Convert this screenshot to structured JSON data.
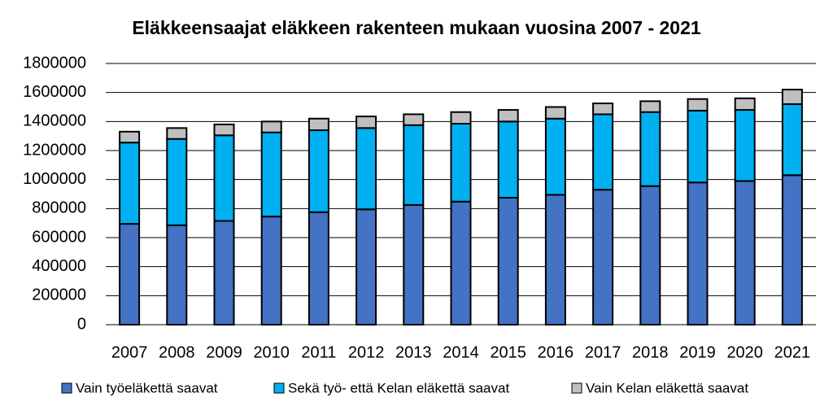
{
  "chart_data": {
    "type": "stacked-bar",
    "title": "Eläkkeensaajat eläkkeen rakenteen mukaan vuosina 2007 - 2021",
    "categories": [
      "2007",
      "2008",
      "2009",
      "2010",
      "2011",
      "2012",
      "2013",
      "2014",
      "2015",
      "2016",
      "2017",
      "2018",
      "2019",
      "2020",
      "2021"
    ],
    "series": [
      {
        "name": "Vain työeläkettä saavat",
        "color": "#4472c4",
        "values": [
          695000,
          685000,
          715000,
          745000,
          775000,
          795000,
          825000,
          848000,
          875000,
          895000,
          930000,
          955000,
          980000,
          990000,
          1030000
        ]
      },
      {
        "name": "Sekä työ- että Kelan eläkettä saavat",
        "color": "#00b0f0",
        "values": [
          560000,
          595000,
          590000,
          580000,
          565000,
          560000,
          550000,
          537000,
          525000,
          525000,
          520000,
          510000,
          495000,
          490000,
          490000
        ]
      },
      {
        "name": "Vain Kelan eläkettä saavat",
        "color": "#bfbfbf",
        "values": [
          75000,
          75000,
          75000,
          75000,
          80000,
          80000,
          75000,
          80000,
          80000,
          80000,
          75000,
          75000,
          80000,
          80000,
          100000
        ]
      }
    ],
    "ylim": [
      0,
      1800000
    ],
    "yticks": [
      0,
      200000,
      400000,
      600000,
      800000,
      1000000,
      1200000,
      1400000,
      1600000,
      1800000
    ],
    "grid": true,
    "legend": "bottom"
  }
}
